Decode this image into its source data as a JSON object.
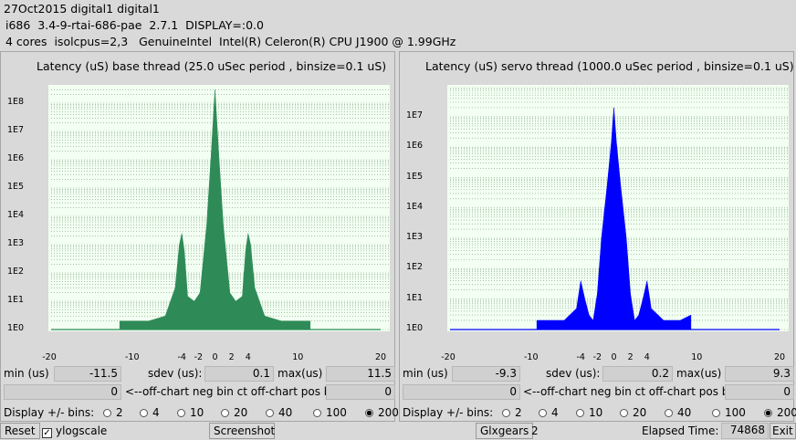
{
  "header": {
    "line1": "27Oct2015 digital1 digital1",
    "line2": "i686  3.4-9-rtai-686-pae  2.7.1  DISPLAY=:0.0",
    "line3": "4 cores  isolcpus=2,3   GenuineIntel  Intel(R) Celeron(R) CPU J1900 @ 1.99GHz"
  },
  "colors": {
    "base_fill": "#2e8b57",
    "servo_fill": "#0000ff",
    "plot_bg": "#f2fff2",
    "grid": "#7a9a7a"
  },
  "left": {
    "title": "Latency (uS) base thread (25.0 uSec period , binsize=0.1 uS)",
    "min_label": "min (us)",
    "min_value": "-11.5",
    "sdev_label": "sdev (us):",
    "sdev_value": "0.1",
    "max_label": "max(us)",
    "max_value": "11.5",
    "neg_value": "0",
    "offchart_label": "<--off-chart neg bin ct off-chart pos bin ct-->",
    "pos_value": "0",
    "bins_label": "Display +/- bins:"
  },
  "right": {
    "title": "Latency (uS) servo thread (1000.0 uSec period , binsize=0.1 uS)",
    "min_label": "min (us)",
    "min_value": "-9.3",
    "sdev_label": "sdev (us):",
    "sdev_value": "0.2",
    "max_label": "max(us)",
    "max_value": "9.3",
    "neg_value": "0",
    "offchart_label": "<--off-chart neg bin ct off-chart pos bin ct-->",
    "pos_value": "0",
    "bins_label": "Display +/- bins:"
  },
  "bins_options": [
    "2",
    "4",
    "10",
    "20",
    "40",
    "100",
    "200"
  ],
  "bins_selected": "200",
  "footer": {
    "reset": "Reset",
    "ylogscale": "ylogscale",
    "ylogscale_checked": true,
    "screenshot": "Screenshot",
    "glxgears": "Glxgears",
    "glxgears_count": "2",
    "elapsed_label": "Elapsed Time:",
    "elapsed_value": "74868",
    "exit": "Exit"
  },
  "chart_data": [
    {
      "type": "area",
      "title": "Latency (uS) base thread (25.0 uSec period , binsize=0.1 uS)",
      "xlim": [
        -20,
        20
      ],
      "x_ticks": [
        "-20",
        "-10",
        "-4",
        "-2",
        "0",
        "2",
        "4",
        "10",
        "20"
      ],
      "ylog": true,
      "y_ticks": [
        "1E0",
        "1E1",
        "1E2",
        "1E3",
        "1E4",
        "1E5",
        "1E6",
        "1E7",
        "1E8"
      ],
      "grid": true,
      "series": [
        {
          "x": [
            -11.5,
            -8,
            -6,
            -4.8,
            -4.3,
            -4,
            -3.7,
            -3.3,
            -2.5,
            -1.8,
            -1,
            -0.5,
            0,
            0.5,
            1,
            1.8,
            2.5,
            3.3,
            3.7,
            4,
            4.3,
            4.8,
            6,
            8,
            11.5
          ],
          "y": [
            2,
            2,
            3,
            30,
            1000,
            2500,
            600,
            15,
            10,
            20,
            5000,
            1000000,
            300000000,
            1000000,
            5000,
            20,
            10,
            15,
            600,
            2500,
            1000,
            30,
            3,
            2,
            2
          ]
        }
      ]
    },
    {
      "type": "area",
      "title": "Latency (uS) servo thread (1000.0 uSec period , binsize=0.1 uS)",
      "xlim": [
        -20,
        20
      ],
      "x_ticks": [
        "-20",
        "-10",
        "-4",
        "-2",
        "0",
        "2",
        "4",
        "10",
        "20"
      ],
      "ylog": true,
      "y_ticks": [
        "1E0",
        "1E1",
        "1E2",
        "1E3",
        "1E4",
        "1E5",
        "1E6",
        "1E7"
      ],
      "grid": true,
      "series": [
        {
          "x": [
            -9.3,
            -8,
            -6,
            -4.5,
            -4,
            -3.5,
            -3,
            -2.5,
            -2,
            -1.5,
            -0.8,
            -0.3,
            0,
            0.3,
            0.8,
            1.5,
            2,
            2.5,
            3,
            3.5,
            4,
            4.5,
            6,
            8,
            9.3
          ],
          "y": [
            2,
            2,
            2,
            5,
            40,
            10,
            3,
            2,
            15,
            1000,
            60000,
            1500000,
            20000000,
            1500000,
            60000,
            1000,
            15,
            2,
            3,
            10,
            40,
            5,
            2,
            2,
            3
          ]
        }
      ]
    }
  ]
}
